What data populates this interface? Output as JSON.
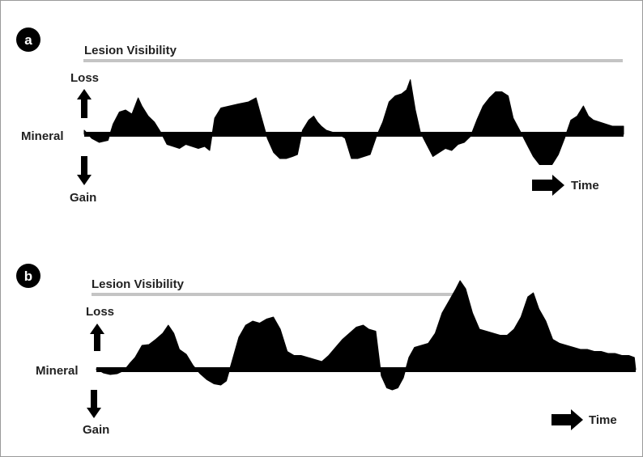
{
  "colors": {
    "frame": "#9a9a9a",
    "bar": "#c4c4c4",
    "ink": "#000000",
    "text": "#222222"
  },
  "panels": [
    {
      "letter": "a",
      "visibility_label": "Lesion Visibility",
      "loss_label": "Loss",
      "gain_label": "Gain",
      "mineral_label": "Mineral",
      "time_label": "Time",
      "profile": [
        [
          0,
          0.1
        ],
        [
          0.6,
          -0.1
        ],
        [
          1.2,
          -0.2
        ],
        [
          1.9,
          -0.15
        ],
        [
          2.3,
          0.25
        ],
        [
          2.8,
          0.55
        ],
        [
          3.3,
          0.6
        ],
        [
          3.8,
          0.5
        ],
        [
          4.3,
          0.9
        ],
        [
          4.6,
          0.7
        ],
        [
          5.1,
          0.45
        ],
        [
          5.6,
          0.3
        ],
        [
          6.1,
          0.05
        ],
        [
          6.6,
          -0.25
        ],
        [
          7.1,
          -0.3
        ],
        [
          7.6,
          -0.35
        ],
        [
          8.1,
          -0.25
        ],
        [
          8.6,
          -0.3
        ],
        [
          9.1,
          -0.35
        ],
        [
          9.6,
          -0.3
        ],
        [
          10.0,
          -0.4
        ],
        [
          10.4,
          0.4
        ],
        [
          10.9,
          0.65
        ],
        [
          11.6,
          0.7
        ],
        [
          12.3,
          0.75
        ],
        [
          13.1,
          0.8
        ],
        [
          13.7,
          0.9
        ],
        [
          14.1,
          0.45
        ],
        [
          14.6,
          -0.1
        ],
        [
          15.1,
          -0.45
        ],
        [
          15.6,
          -0.6
        ],
        [
          16.1,
          -0.6
        ],
        [
          16.6,
          -0.55
        ],
        [
          17.0,
          -0.5
        ],
        [
          17.4,
          0.1
        ],
        [
          17.9,
          0.35
        ],
        [
          18.3,
          0.45
        ],
        [
          18.6,
          0.3
        ],
        [
          18.9,
          0.2
        ],
        [
          19.3,
          0.1
        ],
        [
          19.8,
          0.05
        ],
        [
          20.3,
          0.0
        ],
        [
          20.8,
          -0.1
        ],
        [
          21.3,
          -0.6
        ],
        [
          21.8,
          -0.6
        ],
        [
          22.3,
          -0.55
        ],
        [
          22.8,
          -0.5
        ],
        [
          23.3,
          -0.05
        ],
        [
          23.8,
          0.3
        ],
        [
          24.3,
          0.8
        ],
        [
          24.8,
          0.95
        ],
        [
          25.3,
          1.0
        ],
        [
          25.7,
          1.1
        ],
        [
          26.0,
          1.35
        ],
        [
          26.4,
          0.6
        ],
        [
          26.8,
          0.05
        ],
        [
          27.3,
          -0.25
        ],
        [
          27.8,
          -0.55
        ],
        [
          28.3,
          -0.45
        ],
        [
          28.8,
          -0.35
        ],
        [
          29.3,
          -0.4
        ],
        [
          29.8,
          -0.25
        ],
        [
          30.3,
          -0.2
        ],
        [
          30.8,
          -0.05
        ],
        [
          31.3,
          0.35
        ],
        [
          31.8,
          0.7
        ],
        [
          32.3,
          0.9
        ],
        [
          32.8,
          1.05
        ],
        [
          33.3,
          1.05
        ],
        [
          33.8,
          0.95
        ],
        [
          34.2,
          0.4
        ],
        [
          34.8,
          0.05
        ],
        [
          35.3,
          -0.25
        ],
        [
          35.8,
          -0.55
        ],
        [
          36.3,
          -0.75
        ],
        [
          36.8,
          -0.75
        ],
        [
          37.3,
          -0.75
        ],
        [
          37.8,
          -0.5
        ],
        [
          38.3,
          -0.1
        ],
        [
          38.8,
          0.35
        ],
        [
          39.3,
          0.45
        ],
        [
          39.8,
          0.7
        ],
        [
          40.2,
          0.45
        ],
        [
          40.6,
          0.35
        ],
        [
          41.1,
          0.3
        ],
        [
          41.6,
          0.25
        ],
        [
          42.1,
          0.2
        ],
        [
          42.6,
          0.2
        ],
        [
          43.0,
          0.2
        ]
      ]
    },
    {
      "letter": "b",
      "visibility_label": "Lesion Visibility",
      "loss_label": "Loss",
      "gain_label": "Gain",
      "mineral_label": "Mineral",
      "time_label": "Time",
      "profile": [
        [
          0,
          0.02
        ],
        [
          0.5,
          -0.08
        ],
        [
          1,
          -0.12
        ],
        [
          1.5,
          -0.1
        ],
        [
          2,
          -0.02
        ],
        [
          2.4,
          0.15
        ],
        [
          2.8,
          0.3
        ],
        [
          3.3,
          0.6
        ],
        [
          3.8,
          0.62
        ],
        [
          4.3,
          0.75
        ],
        [
          4.8,
          0.9
        ],
        [
          5.2,
          1.1
        ],
        [
          5.6,
          0.9
        ],
        [
          6,
          0.5
        ],
        [
          6.5,
          0.38
        ],
        [
          7,
          0.1
        ],
        [
          7.5,
          -0.1
        ],
        [
          8,
          -0.25
        ],
        [
          8.5,
          -0.35
        ],
        [
          9,
          -0.38
        ],
        [
          9.4,
          -0.28
        ],
        [
          9.8,
          0.2
        ],
        [
          10.3,
          0.8
        ],
        [
          10.8,
          1.1
        ],
        [
          11.3,
          1.2
        ],
        [
          11.8,
          1.15
        ],
        [
          12.3,
          1.25
        ],
        [
          12.8,
          1.3
        ],
        [
          13.3,
          1.0
        ],
        [
          13.8,
          0.45
        ],
        [
          14.3,
          0.35
        ],
        [
          14.8,
          0.35
        ],
        [
          15.3,
          0.3
        ],
        [
          15.8,
          0.25
        ],
        [
          16.3,
          0.2
        ],
        [
          16.8,
          0.35
        ],
        [
          17.3,
          0.55
        ],
        [
          17.8,
          0.75
        ],
        [
          18.3,
          0.9
        ],
        [
          18.8,
          1.05
        ],
        [
          19.3,
          1.1
        ],
        [
          19.7,
          1.0
        ],
        [
          20.2,
          0.95
        ],
        [
          20.6,
          -0.15
        ],
        [
          21.0,
          -0.45
        ],
        [
          21.4,
          -0.5
        ],
        [
          21.8,
          -0.45
        ],
        [
          22.2,
          -0.2
        ],
        [
          22.6,
          0.3
        ],
        [
          23.0,
          0.55
        ],
        [
          23.5,
          0.6
        ],
        [
          24.0,
          0.65
        ],
        [
          24.5,
          0.9
        ],
        [
          25.0,
          1.4
        ],
        [
          25.5,
          1.7
        ],
        [
          26.0,
          2.0
        ],
        [
          26.3,
          2.2
        ],
        [
          26.7,
          2.0
        ],
        [
          27.2,
          1.4
        ],
        [
          27.7,
          1.0
        ],
        [
          28.2,
          0.95
        ],
        [
          28.7,
          0.9
        ],
        [
          29.2,
          0.85
        ],
        [
          29.7,
          0.85
        ],
        [
          30.2,
          1.0
        ],
        [
          30.7,
          1.3
        ],
        [
          31.2,
          1.8
        ],
        [
          31.6,
          1.9
        ],
        [
          32.0,
          1.5
        ],
        [
          32.5,
          1.2
        ],
        [
          33.0,
          0.75
        ],
        [
          33.5,
          0.65
        ],
        [
          34.0,
          0.6
        ],
        [
          34.5,
          0.55
        ],
        [
          35.0,
          0.5
        ],
        [
          35.5,
          0.5
        ],
        [
          36.0,
          0.45
        ],
        [
          36.5,
          0.45
        ],
        [
          37.0,
          0.4
        ],
        [
          37.5,
          0.4
        ],
        [
          38.0,
          0.35
        ],
        [
          38.5,
          0.35
        ],
        [
          38.9,
          0.3
        ],
        [
          39.0,
          0.0
        ]
      ]
    }
  ]
}
